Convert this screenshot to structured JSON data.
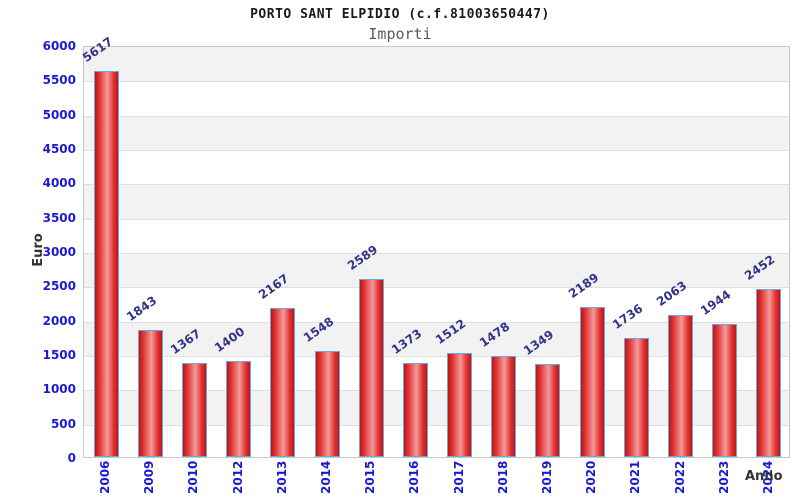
{
  "chart_data": {
    "type": "bar",
    "title": "PORTO SANT ELPIDIO (c.f.81003650447)",
    "subtitle": "Importi",
    "xlabel": "Anno",
    "ylabel": "Euro",
    "categories": [
      "2006",
      "2009",
      "2010",
      "2012",
      "2013",
      "2014",
      "2015",
      "2016",
      "2017",
      "2018",
      "2019",
      "2020",
      "2021",
      "2022",
      "2023",
      "2024"
    ],
    "values": [
      5617,
      1843,
      1367,
      1400,
      2167,
      1548,
      2589,
      1373,
      1512,
      1478,
      1349,
      2189,
      1736,
      2063,
      1944,
      2452
    ],
    "ylim": [
      0,
      6000
    ],
    "ytick_step": 500,
    "grid": true,
    "legend": false,
    "layout_hints": {
      "value_labels": "rotated above bars",
      "x_tick_rotation": "vertical",
      "background_bands": "alternating gray/white every 500"
    },
    "colors": {
      "bar_dark": "#c01515",
      "bar_main": "#e23535",
      "bar_light": "#f49a9a",
      "bar_border": "#6aa7dd",
      "axis_tick_text": "#1a1ad0",
      "value_label_text": "#333388",
      "axis_title_text": "#333333",
      "band_gray": "#f2f2f2",
      "gridline": "#e0e0e0",
      "plot_border": "#c8c8c8"
    }
  }
}
